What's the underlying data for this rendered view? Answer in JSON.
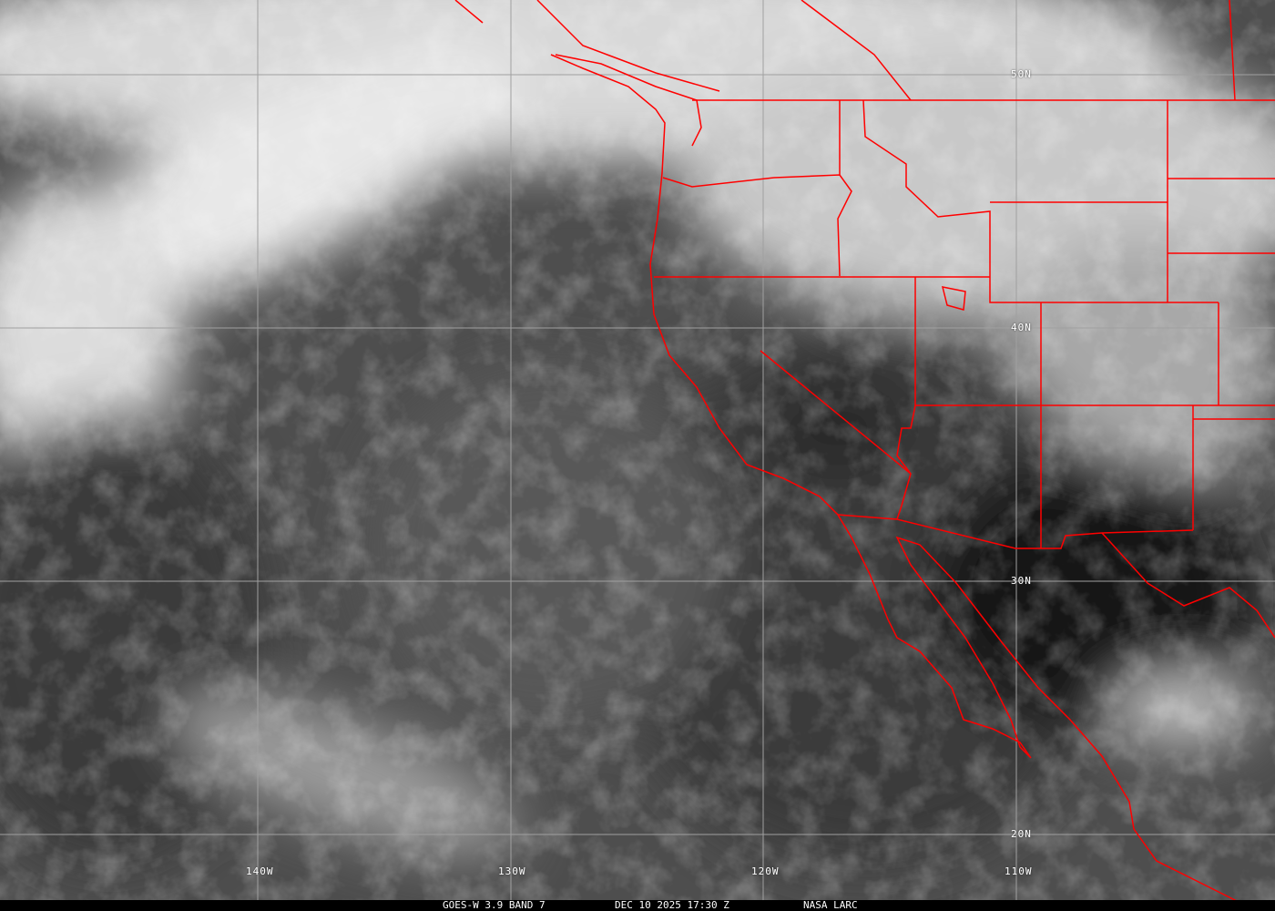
{
  "caption": {
    "satellite": "GOES-W 3.9 BAND 7",
    "datetime": "DEC 10 2025 17:30 Z",
    "source": "NASA LARC"
  },
  "grid": {
    "longitudes": [
      "140W",
      "130W",
      "120W",
      "110W"
    ],
    "latitudes": [
      "50N",
      "40N",
      "30N",
      "20N"
    ]
  },
  "colors": {
    "borders": "#ff0000",
    "grid": "#a0a0a0",
    "caption_bg": "#000000"
  }
}
